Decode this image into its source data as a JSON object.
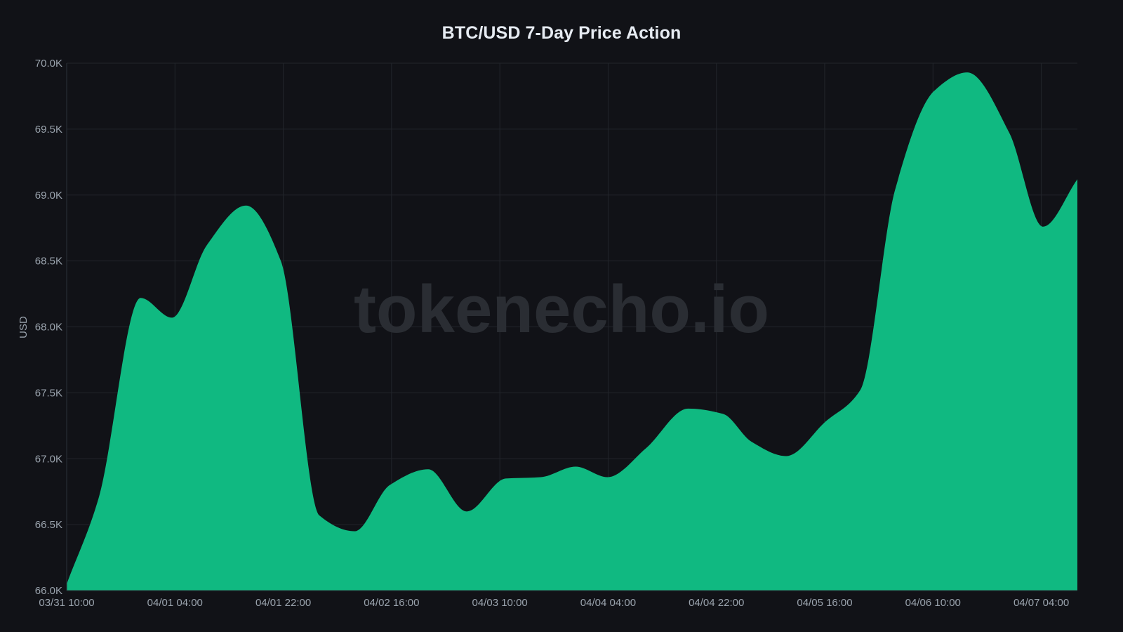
{
  "chart_data": {
    "type": "area",
    "title": "BTC/USD 7-Day Price Action",
    "xlabel": "",
    "ylabel": "USD",
    "ylim": [
      66000,
      70000
    ],
    "grid": true,
    "legend": null,
    "watermark": "tokenecho.io",
    "fill_color": "#10b981",
    "background_color": "#111217",
    "y_ticks": [
      "66.0K",
      "66.5K",
      "67.0K",
      "67.5K",
      "68.0K",
      "68.5K",
      "69.0K",
      "69.5K",
      "70.0K"
    ],
    "y_tick_values": [
      66000,
      66500,
      67000,
      67500,
      68000,
      68500,
      69000,
      69500,
      70000
    ],
    "x_ticks": [
      "03/31 10:00",
      "04/01 04:00",
      "04/01 22:00",
      "04/02 16:00",
      "04/03 10:00",
      "04/04 04:00",
      "04/04 22:00",
      "04/05 16:00",
      "04/06 10:00",
      "04/07 04:00"
    ],
    "x_tick_hours": [
      0,
      18,
      36,
      54,
      72,
      90,
      108,
      126,
      144,
      162
    ],
    "x_range_hours": [
      0,
      168
    ],
    "series": [
      {
        "name": "BTC/USD",
        "x_hours": [
          0,
          5.3,
          12.3,
          17.5,
          23.3,
          29.8,
          35.6,
          42.0,
          47.9,
          53.7,
          60.1,
          66.5,
          73.0,
          78.8,
          84.6,
          89.9,
          96.3,
          103.3,
          109.1,
          113.8,
          119.6,
          126.1,
          131.9,
          137.7,
          144.2,
          149.7,
          156.7,
          162.3,
          168.0
        ],
        "values": [
          66050,
          66700,
          68220,
          68070,
          68620,
          68920,
          68500,
          66570,
          66450,
          66800,
          66920,
          66600,
          66850,
          66860,
          66940,
          66860,
          67080,
          67380,
          67340,
          67130,
          67020,
          67280,
          67520,
          69040,
          69790,
          69930,
          69470,
          68760,
          69120
        ]
      }
    ]
  }
}
